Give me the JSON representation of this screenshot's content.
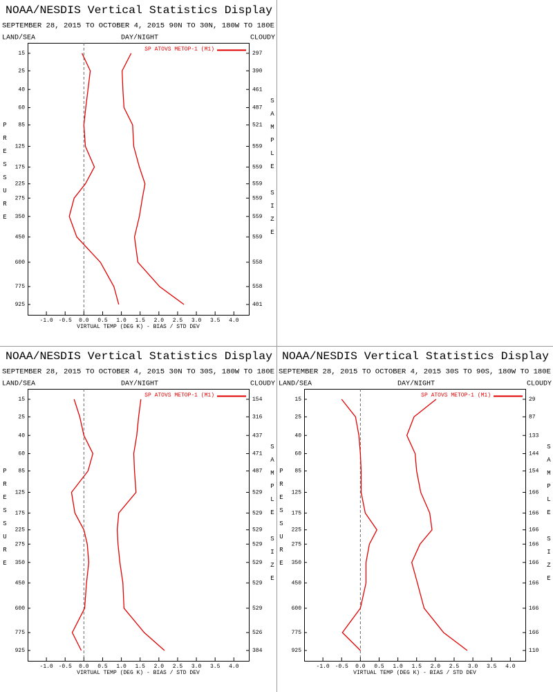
{
  "chart_data": [
    {
      "type": "line",
      "title": "NOAA/NESDIS Vertical Statistics Display",
      "subtitle": "SEPTEMBER 28, 2015 TO OCTOBER 4, 2015 90N TO 30N, 180W TO 180E",
      "left_label": "LAND/SEA",
      "center_label": "DAY/NIGHT",
      "right_label": "CLOUDY",
      "ylabel": "PRESSURE",
      "y2label": "SAMPLE SIZE",
      "xlabel": "VIRTUAL TEMP (DEG K) - BIAS / STD DEV",
      "y": [
        15,
        25,
        40,
        60,
        85,
        125,
        175,
        225,
        275,
        350,
        450,
        600,
        775,
        925
      ],
      "sample_sizes": [
        297,
        390,
        461,
        487,
        521,
        559,
        559,
        559,
        559,
        559,
        559,
        558,
        558,
        401
      ],
      "xlim": [
        -1.5,
        4.4
      ],
      "xticks": [
        {
          "value": -1,
          "label": "-1.0"
        },
        {
          "value": -0.5,
          "label": "-0.5"
        },
        {
          "value": 0,
          "label": "0.0"
        },
        {
          "value": 0.5,
          "label": "0.5"
        },
        {
          "value": 1,
          "label": "1.0"
        },
        {
          "value": 1.5,
          "label": "1.5"
        },
        {
          "value": 2,
          "label": "2.0"
        },
        {
          "value": 2.5,
          "label": "2.5"
        },
        {
          "value": 3,
          "label": "3.0"
        },
        {
          "value": 3.5,
          "label": "3.5"
        },
        {
          "value": 4,
          "label": "4.0"
        }
      ],
      "series": [
        {
          "name": "SP ATOVS METOP-1 (M1)",
          "color": "#e00000",
          "values": [
            -0.05,
            0.17,
            0.11,
            0.05,
            0,
            0.04,
            0.28,
            0.04,
            -0.26,
            -0.39,
            -0.19,
            0.44,
            0.8,
            0.93
          ]
        },
        {
          "color": "#e00000",
          "values": [
            1.26,
            1.02,
            1.04,
            1.07,
            1.3,
            1.33,
            1.48,
            1.63,
            1.56,
            1.48,
            1.35,
            1.44,
            2.02,
            2.67
          ]
        }
      ]
    },
    {
      "type": "line",
      "title": "NOAA/NESDIS Vertical Statistics Display",
      "subtitle": "SEPTEMBER 28, 2015 TO OCTOBER 4, 2015 30N TO 30S, 180W TO 180E",
      "left_label": "LAND/SEA",
      "center_label": "DAY/NIGHT",
      "right_label": "CLOUDY",
      "ylabel": "PRESSURE",
      "y2label": "SAMPLE SIZE",
      "xlabel": "VIRTUAL TEMP (DEG K) - BIAS / STD DEV",
      "y": [
        15,
        25,
        40,
        60,
        85,
        125,
        175,
        225,
        275,
        350,
        450,
        600,
        775,
        925
      ],
      "sample_sizes": [
        154,
        316,
        437,
        471,
        487,
        529,
        529,
        529,
        529,
        529,
        529,
        529,
        526,
        384
      ],
      "xlim": [
        -1.5,
        4.4
      ],
      "xticks": [
        {
          "value": -1,
          "label": "-1.0"
        },
        {
          "value": -0.5,
          "label": "-0.5"
        },
        {
          "value": 0,
          "label": "0.0"
        },
        {
          "value": 0.5,
          "label": "0.5"
        },
        {
          "value": 1,
          "label": "1.0"
        },
        {
          "value": 1.5,
          "label": "1.5"
        },
        {
          "value": 2,
          "label": "2.0"
        },
        {
          "value": 2.5,
          "label": "2.5"
        },
        {
          "value": 3,
          "label": "3.0"
        },
        {
          "value": 3.5,
          "label": "3.5"
        },
        {
          "value": 4,
          "label": "4.0"
        }
      ],
      "series": [
        {
          "name": "SP ATOVS METOP-1 (M1)",
          "color": "#e00000",
          "values": [
            -0.26,
            -0.11,
            0,
            0.24,
            0.11,
            -0.33,
            -0.24,
            0,
            0.09,
            0.13,
            0.07,
            0.02,
            -0.31,
            -0.07
          ]
        },
        {
          "color": "#e00000",
          "values": [
            1.52,
            1.46,
            1.41,
            1.33,
            1.35,
            1.39,
            0.93,
            0.89,
            0.91,
            0.96,
            1.04,
            1.07,
            1.61,
            2.15
          ]
        }
      ]
    },
    {
      "type": "line",
      "title": "NOAA/NESDIS Vertical Statistics Display",
      "subtitle": "SEPTEMBER 28, 2015 TO OCTOBER 4, 2015 30S TO 90S, 180W TO 180E",
      "left_label": "LAND/SEA",
      "center_label": "DAY/NIGHT",
      "right_label": "CLOUDY",
      "ylabel": "PRESSURE",
      "y2label": "SAMPLE SIZE",
      "xlabel": "VIRTUAL TEMP (DEG K) - BIAS / STD DEV",
      "y": [
        15,
        25,
        40,
        60,
        85,
        125,
        175,
        225,
        275,
        350,
        450,
        600,
        775,
        925
      ],
      "sample_sizes": [
        29,
        87,
        133,
        144,
        154,
        166,
        166,
        166,
        166,
        166,
        166,
        166,
        166,
        110
      ],
      "xlim": [
        -1.5,
        4.4
      ],
      "xticks": [
        {
          "value": -1,
          "label": "-1.0"
        },
        {
          "value": -0.5,
          "label": "-0.5"
        },
        {
          "value": 0,
          "label": "0.0"
        },
        {
          "value": 0.5,
          "label": "0.5"
        },
        {
          "value": 1,
          "label": "1.0"
        },
        {
          "value": 1.5,
          "label": "1.5"
        },
        {
          "value": 2,
          "label": "2.0"
        },
        {
          "value": 2.5,
          "label": "2.5"
        },
        {
          "value": 3,
          "label": "3.0"
        },
        {
          "value": 3.5,
          "label": "3.5"
        },
        {
          "value": 4,
          "label": "4.0"
        }
      ],
      "series": [
        {
          "name": "SP ATOVS METOP-1 (M1)",
          "color": "#e00000",
          "values": [
            -0.5,
            -0.13,
            -0.04,
            0,
            0.02,
            0.02,
            0.13,
            0.44,
            0.24,
            0.15,
            0.15,
            0,
            -0.48,
            0
          ]
        },
        {
          "color": "#e00000",
          "values": [
            2.02,
            1.43,
            1.24,
            1.46,
            1.5,
            1.61,
            1.85,
            1.91,
            1.59,
            1.37,
            1.52,
            1.7,
            2.22,
            2.85
          ]
        }
      ]
    }
  ]
}
